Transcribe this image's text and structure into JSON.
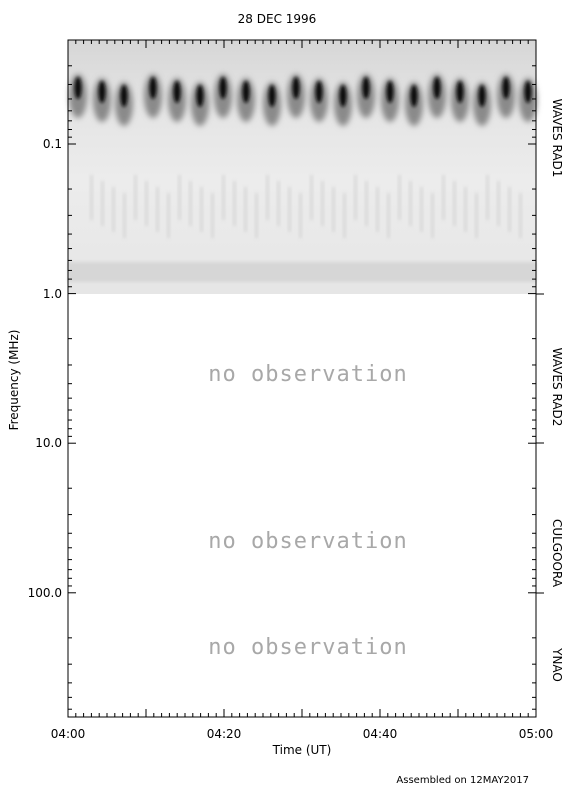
{
  "chart_data": {
    "type": "heatmap",
    "title": "28 DEC 1996",
    "xlabel": "Time (UT)",
    "ylabel": "Frequency (MHz)",
    "y_scale": "log",
    "x_tick_labels": [
      "04:00",
      "04:20",
      "04:40",
      "05:00"
    ],
    "y_tick_labels": [
      "0.1",
      "1.0",
      "10.0",
      "100.0"
    ],
    "instrument_bands": [
      {
        "name": "WAVES RAD1",
        "observed": true
      },
      {
        "name": "WAVES RAD2",
        "observed": false,
        "note": "no observation"
      },
      {
        "name": "CULGOORA",
        "observed": false,
        "note": "no observation"
      },
      {
        "name": "YNAO",
        "observed": false,
        "note": "no observation"
      }
    ],
    "footer": "Assembled on 12MAY2017",
    "grid": false,
    "colormap": "grayscale-inverted"
  }
}
